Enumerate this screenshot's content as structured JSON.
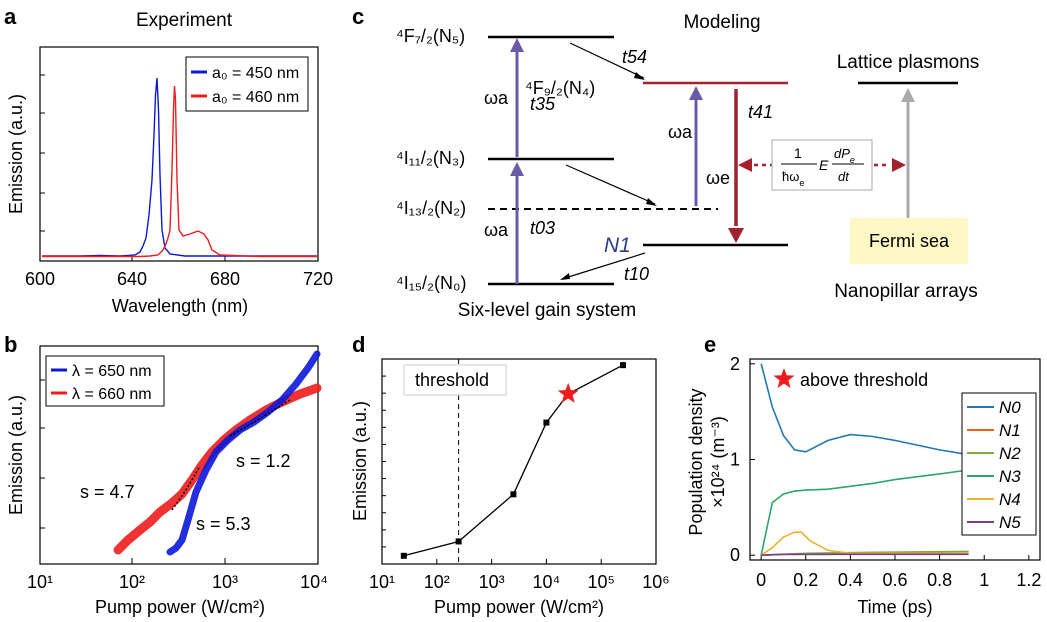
{
  "panel_labels": [
    "a",
    "b",
    "c",
    "d",
    "e"
  ],
  "panel_a": {
    "title": "Experiment",
    "ylabel": "Emission (a.u.)",
    "xlabel": "Wavelength (nm)",
    "xticks": [
      "600",
      "640",
      "680",
      "720"
    ],
    "legend": [
      "a₀ = 450 nm",
      "a₀ = 460 nm"
    ],
    "colors": {
      "blue": "#0b18d9",
      "red": "#ee1c1c"
    }
  },
  "panel_b": {
    "ylabel": "Emission (a.u.)",
    "xlabel": "Pump power (W/cm²)",
    "xticks": [
      "10¹",
      "10²",
      "10³",
      "10⁴"
    ],
    "legend": [
      "λ = 650 nm",
      "λ = 660 nm"
    ],
    "annotations": [
      "s = 4.7",
      "s = 5.3",
      "s = 1.2"
    ]
  },
  "panel_c": {
    "title": "Modeling",
    "levels": [
      "⁴F₇/₂(N₅)",
      "⁴F₉/₂(N₄)",
      "⁴I₁₁/₂(N₃)",
      "⁴I₁₃/₂(N₂)",
      "⁴I₁₅/₂(N₀)"
    ],
    "rates": [
      "t54",
      "t35",
      "t41",
      "t03",
      "t10"
    ],
    "omega_a": "ωa",
    "omega_e": "ωe",
    "n1": "N1",
    "lattice": "Lattice plasmons",
    "fermi": "Fermi sea",
    "gain": "Six-level gain system",
    "arrays": "Nanopillar arrays"
  },
  "chart_data": [
    {
      "type": "line",
      "panel": "d",
      "xlabel": "Pump power (W/cm²)",
      "ylabel": "Emission (a.u.)",
      "xscale": "log",
      "xlim": [
        10,
        1000000
      ],
      "xticks": [
        "10¹",
        "10²",
        "10³",
        "10⁴",
        "10⁵",
        "10⁶"
      ],
      "threshold_label": "threshold",
      "threshold_x": 250,
      "x": [
        25,
        250,
        2500,
        10000,
        25000,
        250000
      ],
      "y_frac": [
        0.04,
        0.11,
        0.34,
        0.69,
        0.83,
        0.97
      ],
      "marker_star_x": 25000
    },
    {
      "type": "line",
      "panel": "e",
      "xlabel": "Time (ps)",
      "ylabel": "Population density",
      "ylabel2": "×10²⁴ (m⁻³)",
      "xlim": [
        -0.05,
        1.25
      ],
      "ylim": [
        -0.05,
        2.05
      ],
      "xticks": [
        "0",
        "0.2",
        "0.4",
        "0.6",
        "0.8",
        "1",
        "1.2"
      ],
      "yticks": [
        "0",
        "1",
        "2"
      ],
      "legend_star": "above threshold",
      "series": [
        {
          "name": "N0",
          "color": "#2178b4",
          "x": [
            0,
            0.05,
            0.1,
            0.15,
            0.2,
            0.3,
            0.4,
            0.5,
            0.6,
            0.7,
            0.8,
            0.93
          ],
          "y": [
            2.0,
            1.55,
            1.25,
            1.1,
            1.08,
            1.2,
            1.26,
            1.24,
            1.2,
            1.15,
            1.1,
            1.05
          ]
        },
        {
          "name": "N1",
          "color": "#e8641b",
          "x": [
            0,
            0.1,
            0.3,
            0.6,
            0.93
          ],
          "y": [
            0.0,
            0.01,
            0.01,
            0.02,
            0.02
          ]
        },
        {
          "name": "N2",
          "color": "#7aab3c",
          "x": [
            0,
            0.2,
            0.5,
            0.93
          ],
          "y": [
            0.0,
            0.02,
            0.03,
            0.04
          ]
        },
        {
          "name": "N3",
          "color": "#2ea56a",
          "x": [
            0,
            0.05,
            0.1,
            0.15,
            0.2,
            0.3,
            0.4,
            0.5,
            0.6,
            0.7,
            0.8,
            0.93
          ],
          "y": [
            0.0,
            0.55,
            0.64,
            0.67,
            0.68,
            0.69,
            0.72,
            0.75,
            0.79,
            0.82,
            0.85,
            0.89
          ]
        },
        {
          "name": "N4",
          "color": "#e8b22a",
          "x": [
            0,
            0.05,
            0.1,
            0.15,
            0.18,
            0.22,
            0.3,
            0.4,
            0.93
          ],
          "y": [
            0.0,
            0.08,
            0.19,
            0.24,
            0.24,
            0.15,
            0.05,
            0.02,
            0.02
          ]
        },
        {
          "name": "N5",
          "color": "#7c3b8f",
          "x": [
            0,
            0.1,
            0.3,
            0.6,
            0.93
          ],
          "y": [
            0.0,
            0.01,
            0.01,
            0.01,
            0.01
          ]
        }
      ]
    }
  ]
}
